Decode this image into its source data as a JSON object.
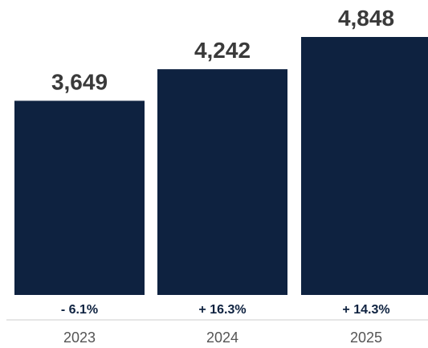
{
  "chart_data": {
    "type": "bar",
    "categories": [
      "2023",
      "2024",
      "2025"
    ],
    "values": [
      3649,
      4242,
      4848
    ],
    "value_labels": [
      "3,649",
      "4,242",
      "4,848"
    ],
    "change_labels": [
      "- 6.1%",
      "+ 16.3%",
      "+ 14.3%"
    ],
    "title": "",
    "xlabel": "",
    "ylabel": "",
    "ylim": [
      0,
      4848
    ],
    "grid": false,
    "legend": "none",
    "colors": {
      "bar": "#0e2240",
      "value_text": "#3a3a3a",
      "change_text": "#0e2240",
      "tick_text": "#555555",
      "axis_line": "#cccccc"
    }
  }
}
